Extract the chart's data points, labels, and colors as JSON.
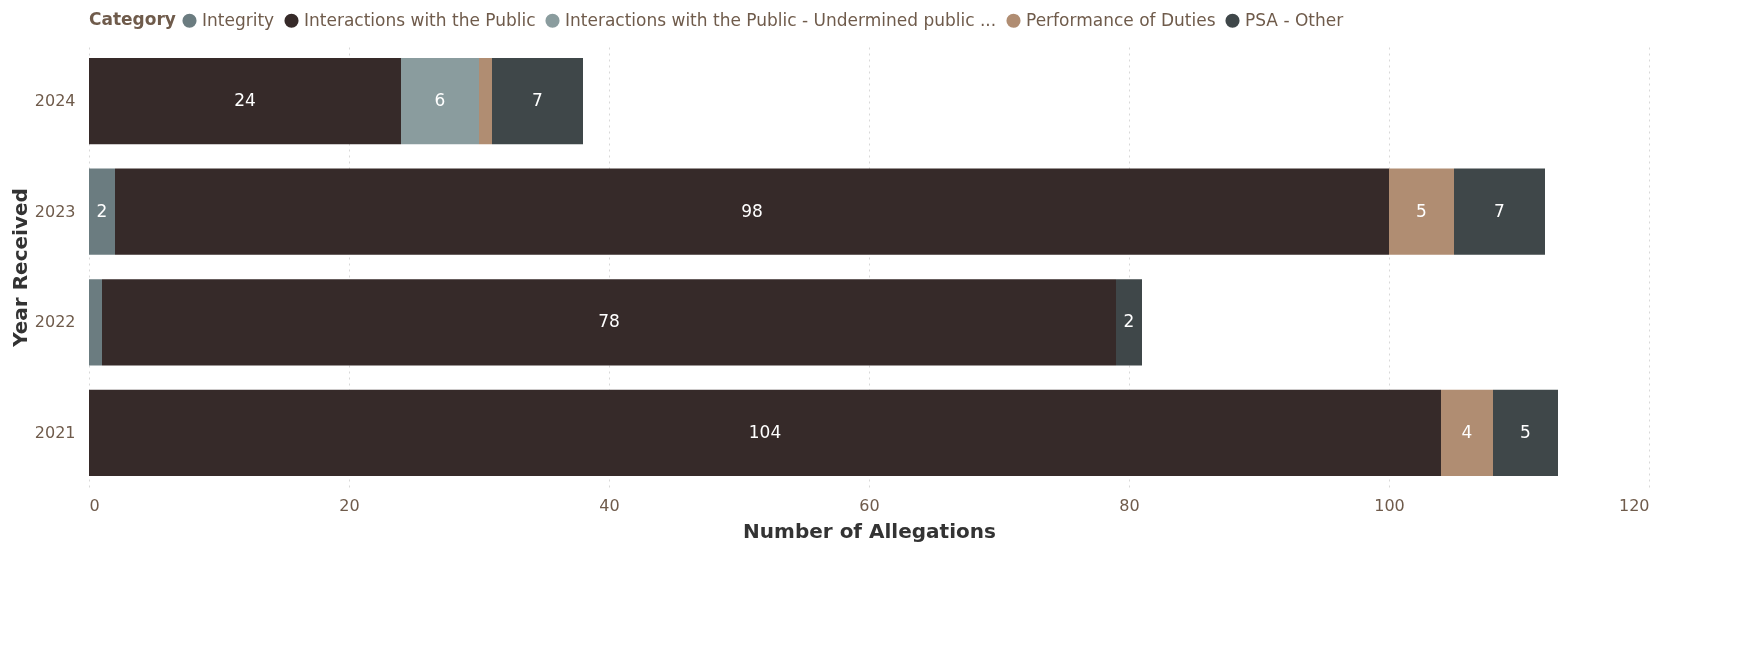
{
  "chart_data": {
    "type": "bar",
    "orientation": "horizontal",
    "stacked": true,
    "xlabel": "Number of Allegations",
    "ylabel": "Year Received",
    "legend_title": "Category",
    "legend": "top",
    "grid": "x",
    "categories": [
      "2024",
      "2023",
      "2022",
      "2021"
    ],
    "xlim": [
      0,
      120
    ],
    "xticks": [
      0,
      20,
      40,
      60,
      80,
      100,
      120
    ],
    "series": [
      {
        "name": "Integrity",
        "color": "#6b7c80",
        "values": [
          null,
          2,
          1,
          null
        ],
        "value_labels": [
          null,
          "2",
          null,
          null
        ]
      },
      {
        "name": "Interactions with the Public",
        "color": "#362a29",
        "values": [
          24,
          98,
          78,
          104
        ],
        "value_labels": [
          "24",
          "98",
          "78",
          "104"
        ]
      },
      {
        "name": "Interactions with the Public - Undermined public ...",
        "color": "#8a9c9e",
        "values": [
          6,
          null,
          null,
          null
        ],
        "value_labels": [
          "6",
          null,
          null,
          null
        ]
      },
      {
        "name": "Performance of Duties",
        "color": "#b08d72",
        "values": [
          1,
          5,
          null,
          4
        ],
        "value_labels": [
          null,
          "5",
          null,
          "4"
        ]
      },
      {
        "name": "PSA - Other",
        "color": "#3f4749",
        "values": [
          7,
          7,
          2,
          5
        ],
        "value_labels": [
          "7",
          "7",
          "2",
          "5"
        ]
      }
    ]
  }
}
